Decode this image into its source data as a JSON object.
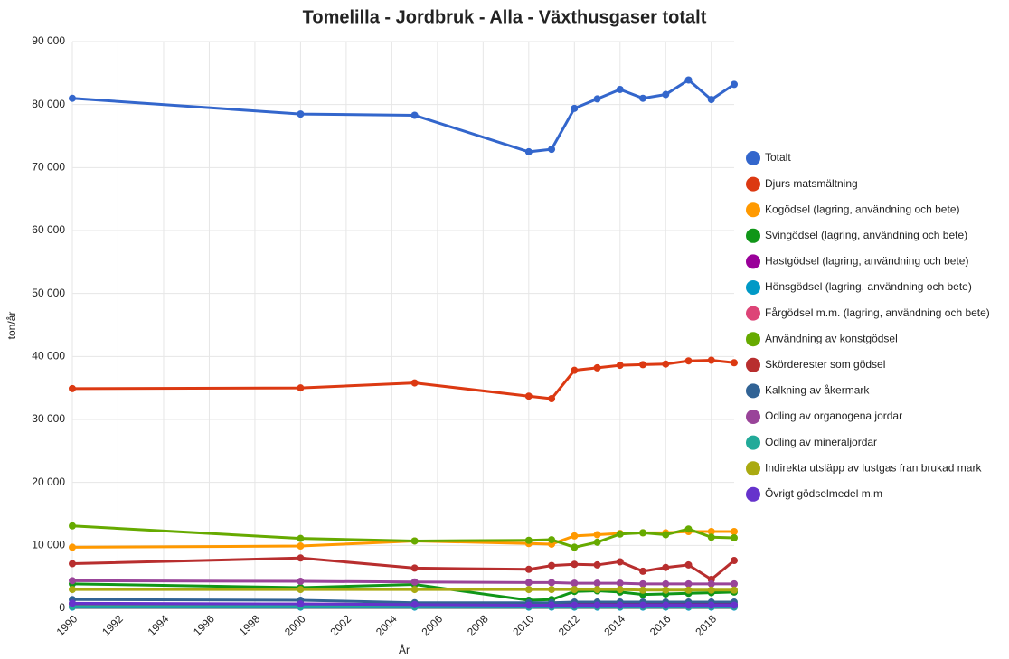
{
  "chart_data": {
    "type": "line",
    "title": "Tomelilla - Jordbruk - Alla - Växthusgaser totalt",
    "x_label": "År",
    "y_label": "ton/år",
    "x": [
      1990,
      2000,
      2005,
      2010,
      2011,
      2012,
      2013,
      2014,
      2015,
      2016,
      2017,
      2018,
      2019
    ],
    "xlim": [
      1990,
      2019
    ],
    "xticks": [
      1990,
      1992,
      1994,
      1996,
      1998,
      2000,
      2002,
      2004,
      2006,
      2008,
      2010,
      2012,
      2014,
      2016,
      2018
    ],
    "ylim": [
      0,
      90000
    ],
    "yticks": [
      0,
      {
        "value": 10000,
        "label": "10 000"
      },
      {
        "value": 20000,
        "label": "20 000"
      },
      {
        "value": 30000,
        "label": "30 000"
      },
      {
        "value": 40000,
        "label": "40 000"
      },
      {
        "value": 50000,
        "label": "50 000"
      },
      {
        "value": 60000,
        "label": "60 000"
      },
      {
        "value": 70000,
        "label": "70 000"
      },
      {
        "value": 80000,
        "label": "80 000"
      },
      {
        "value": 90000,
        "label": "90 000"
      }
    ],
    "grid": true,
    "legend": "right",
    "series": [
      {
        "name": "Totalt",
        "color": "#3366cc",
        "values": [
          81000,
          78500,
          78300,
          72500,
          72900,
          79400,
          80900,
          82400,
          81000,
          81600,
          83900,
          80800,
          83200
        ]
      },
      {
        "name": "Djurs matsmältning",
        "color": "#dc3912",
        "values": [
          34900,
          35000,
          35800,
          33700,
          33300,
          37800,
          38200,
          38600,
          38700,
          38800,
          39300,
          39400,
          39000
        ]
      },
      {
        "name": "Kogödsel (lagring, användning och bete)",
        "color": "#ff9900",
        "values": [
          9700,
          9900,
          10700,
          10300,
          10200,
          11500,
          11700,
          11900,
          12000,
          12000,
          12200,
          12200,
          12200
        ]
      },
      {
        "name": "Svingödsel (lagring, användning och bete)",
        "color": "#109618",
        "values": [
          3900,
          3300,
          3800,
          1300,
          1400,
          2700,
          2800,
          2600,
          2200,
          2300,
          2400,
          2500,
          2600
        ]
      },
      {
        "name": "Hastgödsel (lagring, användning och bete)",
        "color": "#990099",
        "values": [
          700,
          700,
          600,
          600,
          600,
          600,
          600,
          600,
          600,
          600,
          600,
          600,
          600
        ]
      },
      {
        "name": "Hönsgödsel (lagring, användning och bete)",
        "color": "#0099c6",
        "values": [
          200,
          200,
          200,
          200,
          200,
          200,
          200,
          200,
          200,
          200,
          200,
          200,
          200
        ]
      },
      {
        "name": "Fårgödsel m.m. (lagring, användning och bete)",
        "color": "#dd4477",
        "values": [
          300,
          300,
          300,
          300,
          300,
          300,
          300,
          300,
          300,
          300,
          300,
          300,
          300
        ]
      },
      {
        "name": "Användning av konstgödsel",
        "color": "#66aa00",
        "values": [
          13100,
          11100,
          10700,
          10800,
          10900,
          9700,
          10500,
          11800,
          12000,
          11700,
          12600,
          11300,
          11200
        ]
      },
      {
        "name": "Skörderester som gödsel",
        "color": "#b82e2e",
        "values": [
          7100,
          8000,
          6400,
          6200,
          6800,
          7000,
          6900,
          7400,
          5900,
          6500,
          6900,
          4600,
          7600
        ]
      },
      {
        "name": "Kalkning av åkermark",
        "color": "#316395",
        "values": [
          1400,
          1300,
          900,
          900,
          900,
          1000,
          1000,
          1000,
          1000,
          1000,
          1000,
          1000,
          1000
        ]
      },
      {
        "name": "Odling av organogena jordar",
        "color": "#994499",
        "values": [
          4400,
          4300,
          4200,
          4100,
          4100,
          4000,
          4000,
          4000,
          3900,
          3900,
          3900,
          3900,
          3900
        ]
      },
      {
        "name": "Odling av mineraljordar",
        "color": "#22aa99",
        "values": [
          300,
          300,
          300,
          300,
          300,
          300,
          300,
          300,
          300,
          300,
          300,
          300,
          300
        ]
      },
      {
        "name": "Indirekta utsläpp av lustgas fran brukad mark",
        "color": "#aaaa11",
        "values": [
          3000,
          3000,
          3000,
          3000,
          3000,
          3000,
          3000,
          3000,
          2900,
          2900,
          2900,
          2900,
          2900
        ]
      },
      {
        "name": "Övrigt gödselmedel m.m",
        "color": "#6633cc",
        "values": [
          800,
          700,
          600,
          500,
          500,
          500,
          500,
          500,
          500,
          500,
          500,
          500,
          500
        ]
      }
    ]
  }
}
